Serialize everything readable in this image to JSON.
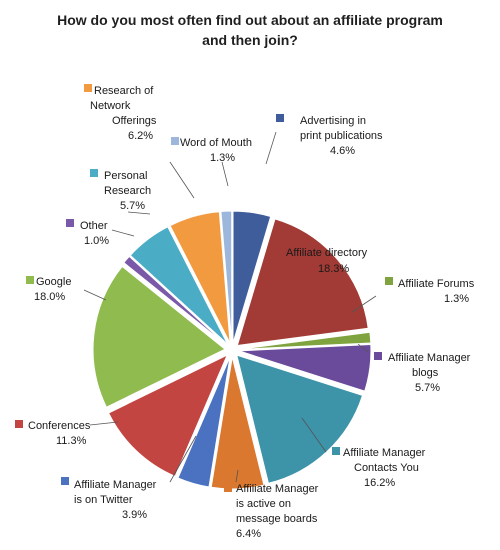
{
  "chart_data": {
    "type": "pie",
    "title_lines": [
      "How do you most often find out about an affiliate program",
      "and then join?"
    ],
    "slices": [
      {
        "label": [
          "Advertising in",
          "print publications"
        ],
        "value": 4.6,
        "value_label": "4.6%",
        "color": "#3f5d9b"
      },
      {
        "label": [
          "Affiliate directory"
        ],
        "value": 18.3,
        "value_label": "18.3%",
        "color": "#a23b35"
      },
      {
        "label": [
          "Affiliate Forums"
        ],
        "value": 1.3,
        "value_label": "1.3%",
        "color": "#7fa33f"
      },
      {
        "label": [
          "Affiliate Manager",
          "blogs"
        ],
        "value": 5.7,
        "value_label": "5.7%",
        "color": "#6a4a9b"
      },
      {
        "label": [
          "Affiliate Manager",
          "Contacts You"
        ],
        "value": 16.2,
        "value_label": "16.2%",
        "color": "#3d93a8"
      },
      {
        "label": [
          "Affiliate Manager",
          "is active on",
          "message boards"
        ],
        "value": 6.4,
        "value_label": "6.4%",
        "color": "#d9782e"
      },
      {
        "label": [
          "Affiliate Manager",
          "is on Twitter"
        ],
        "value": 3.9,
        "value_label": "3.9%",
        "color": "#4a72c0"
      },
      {
        "label": [
          "Conferences"
        ],
        "value": 11.3,
        "value_label": "11.3%",
        "color": "#c24541"
      },
      {
        "label": [
          "Google"
        ],
        "value": 18.0,
        "value_label": "18.0%",
        "color": "#90bb4e"
      },
      {
        "label": [
          "Other"
        ],
        "value": 1.0,
        "value_label": "1.0%",
        "color": "#7a5aa8"
      },
      {
        "label": [
          "Personal",
          "Research"
        ],
        "value": 5.7,
        "value_label": "5.7%",
        "color": "#4bacc6"
      },
      {
        "label": [
          "Research of",
          "Network",
          "Offerings"
        ],
        "value": 6.2,
        "value_label": "6.2%",
        "color": "#f29a40"
      },
      {
        "label": [
          "Word of Mouth"
        ],
        "value": 1.3,
        "value_label": "1.3%",
        "color": "#9db6dc"
      }
    ],
    "start_angle": "12 o'clock",
    "direction": "clockwise",
    "legend": "none"
  }
}
